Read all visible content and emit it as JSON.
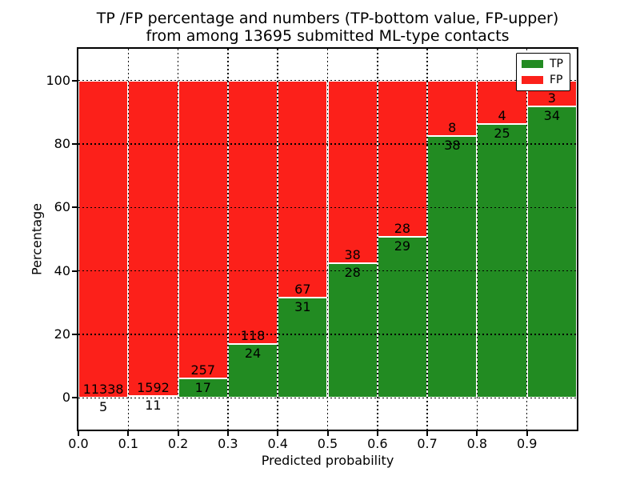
{
  "figure": {
    "title_line1": "TP /FP percentage and numbers (TP-bottom value, FP-upper)",
    "title_line2": "from among 13695 submitted ML-type contacts",
    "xlabel": "Predicted probability",
    "ylabel": "Percentage"
  },
  "chart_data": {
    "type": "bar",
    "subtype": "stacked-percentage-histogram",
    "title": "TP /FP percentage and numbers (TP-bottom value, FP-upper) from among 13695 submitted ML-type contacts",
    "xlabel": "Predicted probability",
    "ylabel": "Percentage",
    "total_contacts": 13695,
    "xlim": [
      0.0,
      1.0
    ],
    "ylim": [
      -10,
      110
    ],
    "bin_edges": [
      0.0,
      0.1,
      0.2,
      0.3,
      0.4,
      0.5,
      0.6,
      0.7,
      0.8,
      0.9,
      1.0
    ],
    "xtick_values": [
      0.0,
      0.1,
      0.2,
      0.3,
      0.4,
      0.5,
      0.6,
      0.7,
      0.8,
      0.9
    ],
    "xtick_labels": [
      "0.0",
      "0.1",
      "0.2",
      "0.3",
      "0.4",
      "0.5",
      "0.6",
      "0.7",
      "0.8",
      "0.9"
    ],
    "ytick_values": [
      0,
      20,
      40,
      60,
      80,
      100
    ],
    "ytick_labels": [
      "0",
      "20",
      "40",
      "60",
      "80",
      "100"
    ],
    "grid": {
      "linestyle": "dotted",
      "color": "#000000"
    },
    "legend": {
      "position": "upper right",
      "entries": [
        "TP",
        "FP"
      ]
    },
    "series": [
      {
        "name": "TP",
        "stack_position": "bottom",
        "color": "#228b22",
        "counts": [
          5,
          11,
          17,
          24,
          31,
          28,
          29,
          38,
          25,
          34
        ]
      },
      {
        "name": "FP",
        "stack_position": "top",
        "color": "#fc201a",
        "counts": [
          11338,
          1592,
          257,
          118,
          67,
          38,
          28,
          8,
          4,
          3
        ]
      }
    ],
    "tp_percent_by_bin": [
      0.04,
      0.69,
      6.2,
      16.9,
      31.63,
      42.42,
      50.88,
      82.61,
      86.21,
      91.89
    ]
  },
  "colors": {
    "tp": "#228b22",
    "fp": "#fc201a",
    "background": "#ffffff",
    "bar_edge": "#ffffff",
    "axes": "#000000",
    "text": "#000000"
  }
}
